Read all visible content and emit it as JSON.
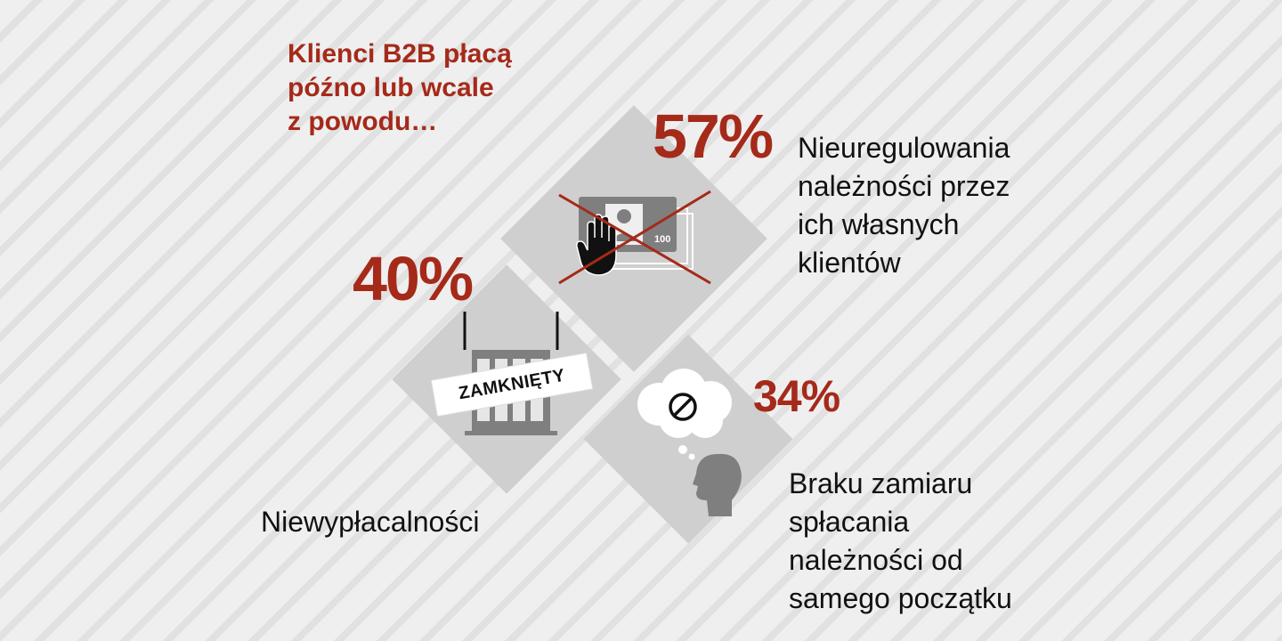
{
  "title": [
    "Klienci B2B płacą",
    "późno lub wcale",
    "z powodu…"
  ],
  "items": [
    {
      "percent": "57%",
      "label_lines": [
        "Nieuregulowania",
        "należności przez",
        "ich własnych",
        "klientów"
      ],
      "card_amount": "100",
      "icon": "crossed-out-card-with-stop-hand-icon"
    },
    {
      "percent": "40%",
      "label_lines": [
        "Niewypłacalności"
      ],
      "sign_text": "ZAMKNIĘTY",
      "icon": "closed-building-icon"
    },
    {
      "percent": "34%",
      "label_lines": [
        "Braku zamiaru",
        "spłacania",
        "należności od",
        "samego początku"
      ],
      "icon": "person-thinking-no-sign-icon"
    }
  ],
  "colors": {
    "accent": "#a52a1a",
    "diamond": "#cfcfcf",
    "icon_gray": "#7f7f7f",
    "background": "#efefef"
  }
}
